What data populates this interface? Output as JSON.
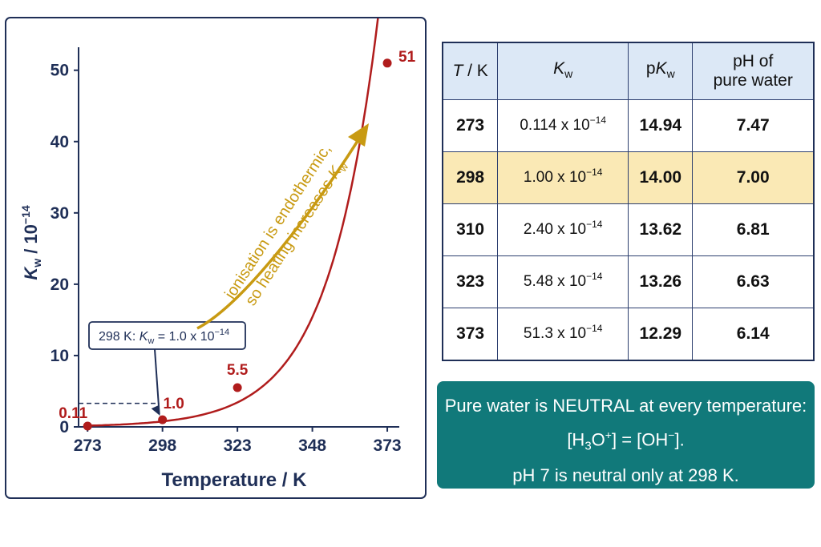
{
  "chart_data": {
    "type": "line",
    "x": [
      273,
      298,
      323,
      373
    ],
    "y": [
      0.11,
      1.0,
      5.5,
      51
    ],
    "point_labels": [
      "0.11",
      "1.0",
      "5.5",
      "51"
    ],
    "xlabel": "Temperature / K",
    "ylabel_text": "K",
    "ylabel_sub": "w",
    "ylabel_rest": " / 10",
    "ylabel_sup": "−14",
    "xticks": [
      273,
      298,
      323,
      348,
      373
    ],
    "yticks": [
      0,
      10,
      20,
      30,
      40,
      50
    ],
    "xlim": [
      270,
      377
    ],
    "ylim": [
      0,
      53
    ],
    "grid": false,
    "line_color": "#b01c1c",
    "reference_y": 3.3,
    "callout": {
      "label": "298 K: ",
      "k": "K",
      "sub": "w",
      "rest": " = 1.0 x 10",
      "sup": "−14"
    },
    "annotation": {
      "line1": "ionisation is endothermic,",
      "line2": "so heating increases ",
      "k": "K",
      "sub": "w",
      "color": "#c89a12"
    }
  },
  "table": {
    "headers": [
      "T",
      " / K",
      "K",
      "w",
      "p",
      "K",
      "w",
      "pH of",
      "pure water"
    ],
    "rows": [
      {
        "t": "273",
        "kw_mantissa": "0.114 x 10",
        "kw_exp": "−14",
        "pkw": "14.94",
        "ph": "7.47"
      },
      {
        "t": "298",
        "kw_mantissa": "1.00 x 10",
        "kw_exp": "−14",
        "pkw": "14.00",
        "ph": "7.00"
      },
      {
        "t": "310",
        "kw_mantissa": "2.40 x 10",
        "kw_exp": "−14",
        "pkw": "13.62",
        "ph": "6.81"
      },
      {
        "t": "323",
        "kw_mantissa": "5.48 x 10",
        "kw_exp": "−14",
        "pkw": "13.26",
        "ph": "6.63"
      },
      {
        "t": "373",
        "kw_mantissa": "51.3 x 10",
        "kw_exp": "−14",
        "pkw": "12.29",
        "ph": "6.14"
      }
    ],
    "highlight_color": "#fae9b5",
    "header_color": "#dce8f6"
  },
  "note": {
    "line1": "Pure water is NEUTRAL at every temperature:",
    "line2": "[H3O+] = [OH−].",
    "line3": "pH 7 is neutral only at 298 K.",
    "color": "#11797a"
  }
}
